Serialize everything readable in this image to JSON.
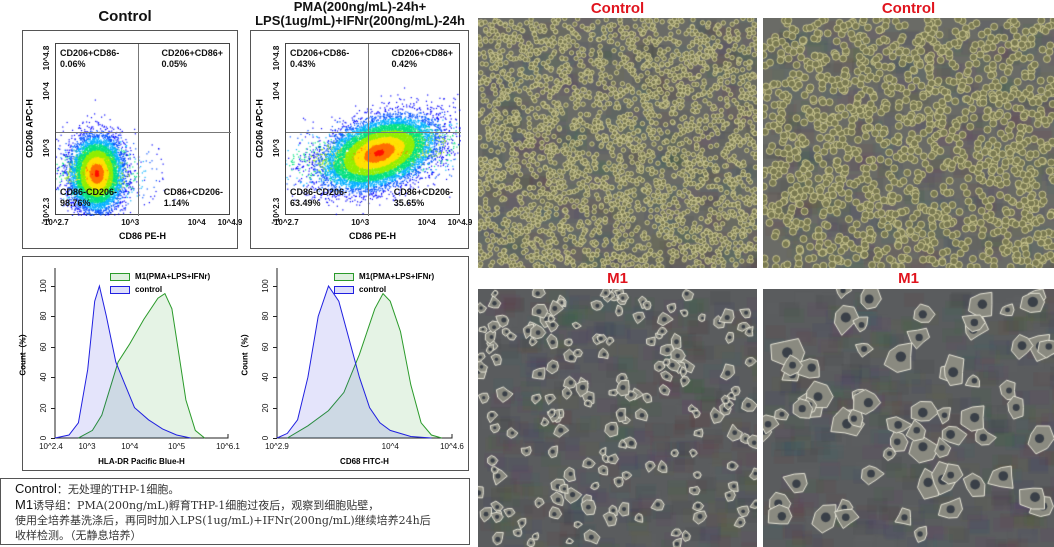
{
  "flow_titles": {
    "control": "Control",
    "m1_line1": "PMA(200ng/mL)-24h+",
    "m1_line2": "LPS(1ug/mL)+IFNr(200ng/mL)-24h"
  },
  "image_labels": {
    "top_left": "Control",
    "top_right": "Control",
    "bottom_left": "M1",
    "bottom_right": "M1"
  },
  "note": {
    "line1_label": "Control",
    "line1_text": "：无处理的THP-1细胞。",
    "line2_label": "M1",
    "line2_text": "诱导组：PMA(200ng/mL)孵育THP-1细胞过夜后，观察到细胞贴壁，",
    "line3_text": "使用全培养基洗涤后，再同时加入LPS(1ug/mL)+IFNr(200ng/mL)继续培养24h后",
    "line4_text": "收样检测。（无静息培养）"
  },
  "colors": {
    "control_hist": "#2020e0",
    "m1_hist": "#2a9a2a",
    "image_label": "#e0141e"
  },
  "chart_data": [
    {
      "type": "scatter",
      "title": "Control",
      "xlabel": "CD86 PE-H",
      "ylabel": "CD206 APC-H",
      "x_ticks": [
        "-10^2.7",
        "10^3",
        "10^4",
        "10^4.9"
      ],
      "y_ticks": [
        "10^2.3",
        "10^3",
        "10^4",
        "10^4.8"
      ],
      "quadrants": {
        "upper_left": {
          "label": "CD206+CD86-",
          "value": "0.06%"
        },
        "upper_right": {
          "label": "CD206+CD86+",
          "value": "0.05%"
        },
        "lower_left": {
          "label": "CD86-CD206-",
          "value": "98.76%"
        },
        "lower_right": {
          "label": "CD86+CD206-",
          "value": "1.14%"
        }
      }
    },
    {
      "type": "scatter",
      "title": "PMA(200ng/mL)-24h+ LPS(1ug/mL)+IFNr(200ng/mL)-24h",
      "xlabel": "CD86 PE-H",
      "ylabel": "CD206 APC-H",
      "x_ticks": [
        "-10^2.7",
        "10^3",
        "10^4",
        "10^4.9"
      ],
      "y_ticks": [
        "10^2.3",
        "10^3",
        "10^4",
        "10^4.8"
      ],
      "quadrants": {
        "upper_left": {
          "label": "CD206+CD86-",
          "value": "0.43%"
        },
        "upper_right": {
          "label": "CD206+CD86+",
          "value": "0.42%"
        },
        "lower_left": {
          "label": "CD86-CD206-",
          "value": "63.49%"
        },
        "lower_right": {
          "label": "CD86+CD206-",
          "value": "35.65%"
        }
      }
    },
    {
      "type": "area",
      "xlabel": "HLA-DR Pacific Blue-H",
      "ylabel": "Count（%）",
      "x_scale": "log",
      "xlim_log10": [
        2.4,
        6.1
      ],
      "ylim": [
        0,
        100
      ],
      "x_ticks": [
        "10^2.4",
        "10^3",
        "10^4",
        "10^5",
        "10^6.1"
      ],
      "y_ticks": [
        "0",
        "20",
        "40",
        "60",
        "80",
        "100"
      ],
      "legend": "top-right",
      "series": [
        {
          "name": "M1(PMA+LPS+IFNr)",
          "color": "#2a9a2a",
          "log10_x": [
            2.9,
            3.2,
            3.4,
            3.6,
            3.75,
            4.0,
            4.3,
            4.6,
            4.75,
            4.9,
            5.0,
            5.2,
            5.4,
            5.6
          ],
          "y": [
            0,
            5,
            15,
            35,
            50,
            62,
            78,
            92,
            95,
            85,
            65,
            25,
            5,
            0
          ]
        },
        {
          "name": "control",
          "color": "#2020e0",
          "log10_x": [
            2.4,
            2.7,
            2.9,
            3.1,
            3.25,
            3.35,
            3.5,
            3.7,
            3.9,
            4.1,
            4.4,
            4.7,
            5.0,
            5.3
          ],
          "y": [
            0,
            2,
            10,
            45,
            90,
            100,
            80,
            50,
            35,
            20,
            12,
            6,
            2,
            0
          ]
        }
      ]
    },
    {
      "type": "area",
      "xlabel": "CD68 FITC-H",
      "ylabel": "Count（%）",
      "x_scale": "log",
      "xlim_log10": [
        2.9,
        4.6
      ],
      "ylim": [
        0,
        100
      ],
      "x_ticks": [
        "10^2.9",
        "10^4",
        "10^4.6"
      ],
      "y_ticks": [
        "0",
        "20",
        "40",
        "60",
        "80",
        "100"
      ],
      "legend": "top-right",
      "series": [
        {
          "name": "M1(PMA+LPS+IFNr)",
          "color": "#2a9a2a",
          "log10_x": [
            3.0,
            3.2,
            3.4,
            3.55,
            3.7,
            3.85,
            3.93,
            4.0,
            4.1,
            4.2,
            4.3,
            4.4,
            4.5
          ],
          "y": [
            0,
            8,
            18,
            30,
            55,
            85,
            95,
            90,
            70,
            35,
            10,
            2,
            0
          ]
        },
        {
          "name": "control",
          "color": "#2020e0",
          "log10_x": [
            2.9,
            3.0,
            3.1,
            3.2,
            3.3,
            3.4,
            3.5,
            3.6,
            3.7,
            3.8,
            3.9,
            4.0,
            4.2,
            4.4
          ],
          "y": [
            0,
            3,
            12,
            40,
            80,
            100,
            90,
            65,
            40,
            20,
            10,
            5,
            1,
            0
          ]
        }
      ]
    }
  ]
}
